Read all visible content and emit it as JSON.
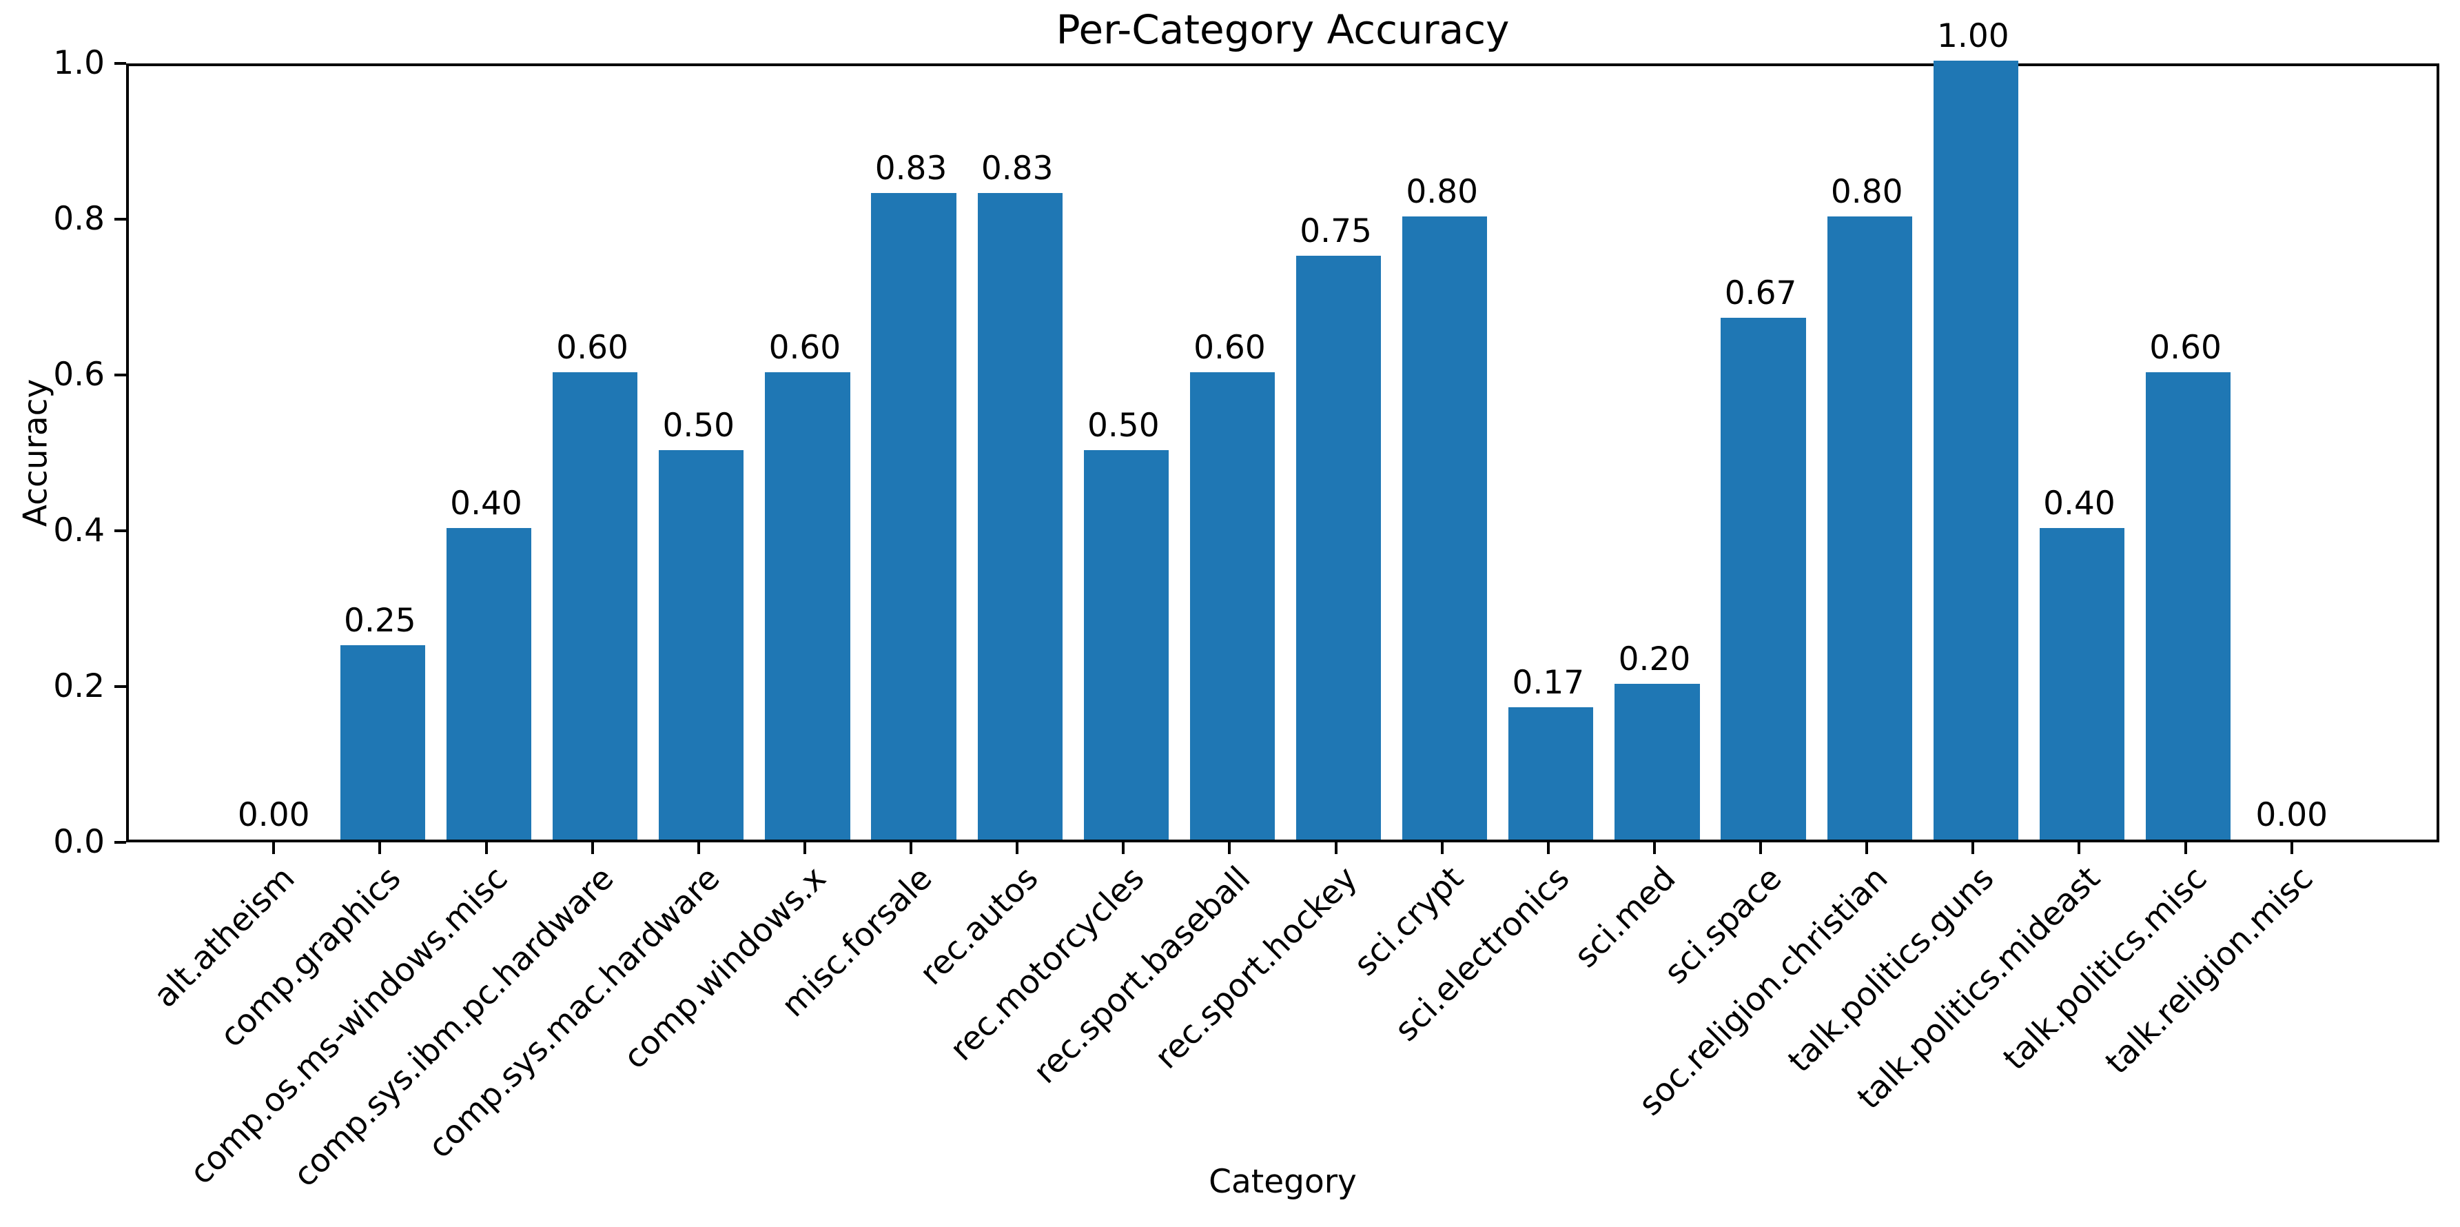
{
  "figure": {
    "title": "Per-Category Accuracy",
    "xlabel": "Category",
    "ylabel": "Accuracy"
  },
  "colors": {
    "bar": "#1f77b4",
    "axis": "#000000",
    "text": "#000000",
    "background": "#ffffff"
  },
  "chart_data": {
    "type": "bar",
    "title": "Per-Category Accuracy",
    "xlabel": "Category",
    "ylabel": "Accuracy",
    "categories": [
      "alt.atheism",
      "comp.graphics",
      "comp.os.ms-windows.misc",
      "comp.sys.ibm.pc.hardware",
      "comp.sys.mac.hardware",
      "comp.windows.x",
      "misc.forsale",
      "rec.autos",
      "rec.motorcycles",
      "rec.sport.baseball",
      "rec.sport.hockey",
      "sci.crypt",
      "sci.electronics",
      "sci.med",
      "sci.space",
      "soc.religion.christian",
      "talk.politics.guns",
      "talk.politics.mideast",
      "talk.politics.misc",
      "talk.religion.misc"
    ],
    "values": [
      0.0,
      0.25,
      0.4,
      0.6,
      0.5,
      0.6,
      0.83,
      0.83,
      0.5,
      0.6,
      0.75,
      0.8,
      0.17,
      0.2,
      0.67,
      0.8,
      1.0,
      0.4,
      0.6,
      0.0
    ],
    "bar_labels": [
      "0.00",
      "0.25",
      "0.40",
      "0.60",
      "0.50",
      "0.60",
      "0.83",
      "0.83",
      "0.50",
      "0.60",
      "0.75",
      "0.80",
      "0.17",
      "0.20",
      "0.67",
      "0.80",
      "1.00",
      "0.40",
      "0.60",
      "0.00"
    ],
    "ylim": [
      0.0,
      1.0
    ],
    "yticks": [
      0.0,
      0.2,
      0.4,
      0.6,
      0.8,
      1.0
    ],
    "ytick_labels": [
      "0.0",
      "0.2",
      "0.4",
      "0.6",
      "0.8",
      "1.0"
    ],
    "bar_color": "#1f77b4",
    "grid": false,
    "legend_position": "none",
    "x_tick_rotation_deg": 45
  }
}
